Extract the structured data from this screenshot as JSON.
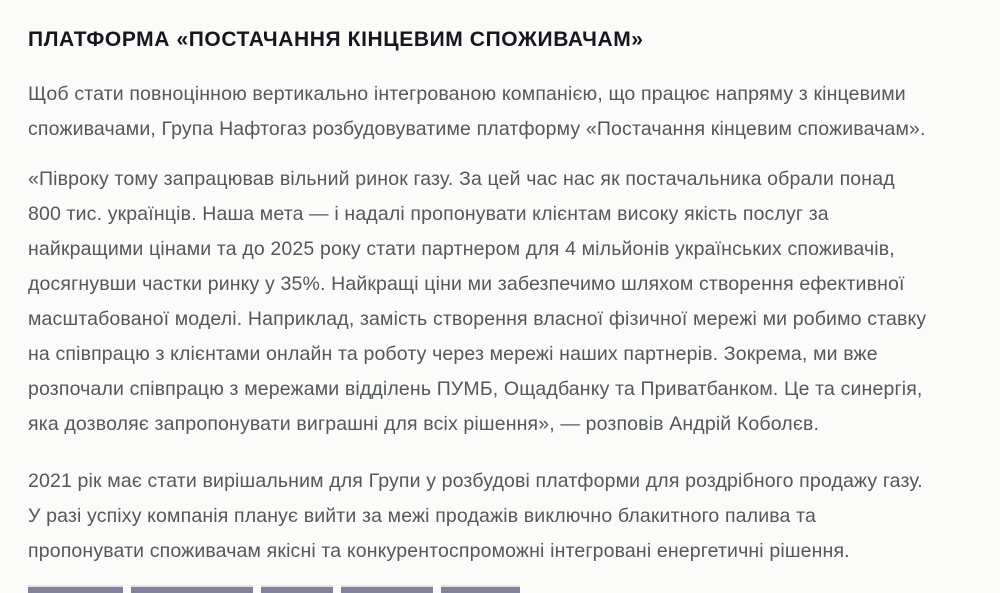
{
  "article": {
    "title": "ПЛАТФОРМА «ПОСТАЧАННЯ КІНЦЕВИМ СПОЖИВАЧАМ»",
    "paragraphs": [
      {
        "name": "intro",
        "lines": [
          "Щоб стати повноцінною вертикально інтегрованою компанією, що працює напряму з кінцевими",
          "споживачами, Група Нафтогаз розбудовуватиме платформу «Постачання кінцевим споживачам»."
        ]
      },
      {
        "name": "quote",
        "lines": [
          "«Півроку тому запрацював вільний ринок газу. За цей час нас як постачальника обрали понад",
          "800 тис. українців. Наша мета — і надалі пропонувати клієнтам високу якість послуг за",
          "найкращими цінами та до 2025 року стати партнером для 4 мільйонів українських споживачів,",
          "досягнувши частки ринку у 35%. Найкращі ціни ми забезпечимо шляхом створення ефективної",
          "масштабованої моделі. Наприклад, замість створення власної фізичної мережі ми робимо ставку",
          "на співпрацю з клієнтами онлайн та роботу через мережі наших партнерів. Зокрема, ми вже",
          "розпочали співпрацю з мережами відділень ПУМБ, Ощадбанку та Приватбанком. Це та синергія,",
          "яка дозволяє запропонувати виграшні для всіх рішення», — розповів Андрій Коболєв."
        ]
      },
      {
        "name": "outlook",
        "lines": [
          "2021 рік має стати вирішальним для Групи у розбудові платформи для роздрібного продажу газу.",
          "У разі успіху компанія планує вийти за межі продажів виключно блакитного палива та",
          "пропонувати споживачам якісні та конкурентоспроможні інтегровані енергетичні рішення."
        ]
      }
    ]
  },
  "colors": {
    "background": "#fbfbf9",
    "heading": "#16161f",
    "body": "#53585b",
    "clipped": "#3c3f66"
  }
}
